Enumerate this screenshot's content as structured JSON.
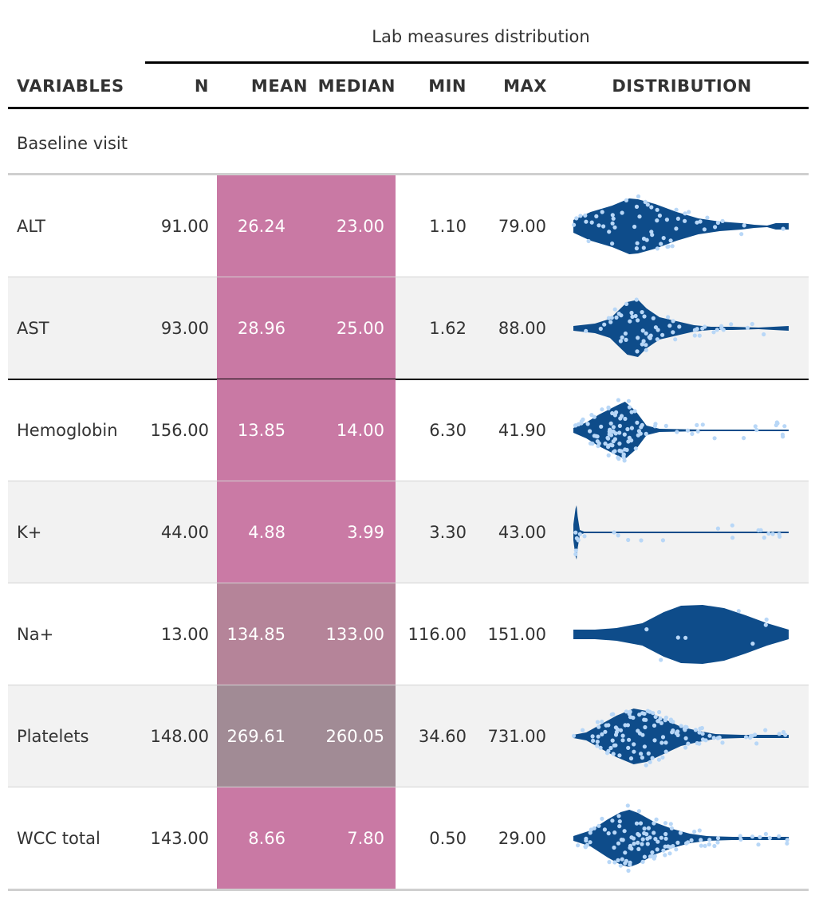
{
  "table": {
    "spanner": "Lab measures distribution",
    "headers": {
      "variables": "VARIABLES",
      "n": "N",
      "mean": "MEAN",
      "median": "MEDIAN",
      "min": "MIN",
      "max": "MAX",
      "distribution": "DISTRIBUTION"
    },
    "group_label": "Baseline visit",
    "colors": {
      "violin_fill": "#0e4c8a",
      "point_color": "#b8d7f7",
      "mean_median_fill": "#c979a4",
      "stripe": "#f2f2f2"
    },
    "rows": [
      {
        "variable": "ALT",
        "n": "91.00",
        "mean": "26.24",
        "median": "23.00",
        "min": "1.10",
        "max": "79.00",
        "fill": "#c979a4"
      },
      {
        "variable": "AST",
        "n": "93.00",
        "mean": "28.96",
        "median": "25.00",
        "min": "1.62",
        "max": "88.00",
        "fill": "#c979a4"
      },
      {
        "variable": "Hemoglobin",
        "n": "156.00",
        "mean": "13.85",
        "median": "14.00",
        "min": "6.30",
        "max": "41.90",
        "fill": "#c979a4"
      },
      {
        "variable": "K+",
        "n": "44.00",
        "mean": "4.88",
        "median": "3.99",
        "min": "3.30",
        "max": "43.00",
        "fill": "#ca7aa5"
      },
      {
        "variable": "Na+",
        "n": "13.00",
        "mean": "134.85",
        "median": "133.00",
        "min": "116.00",
        "max": "151.00",
        "fill": "#b58499"
      },
      {
        "variable": "Platelets",
        "n": "148.00",
        "mean": "269.61",
        "median": "260.05",
        "min": "34.60",
        "max": "731.00",
        "fill": "#a18b95"
      },
      {
        "variable": "WCC total",
        "n": "143.00",
        "mean": "8.66",
        "median": "7.80",
        "min": "0.50",
        "max": "29.00",
        "fill": "#c979a4"
      }
    ]
  }
}
